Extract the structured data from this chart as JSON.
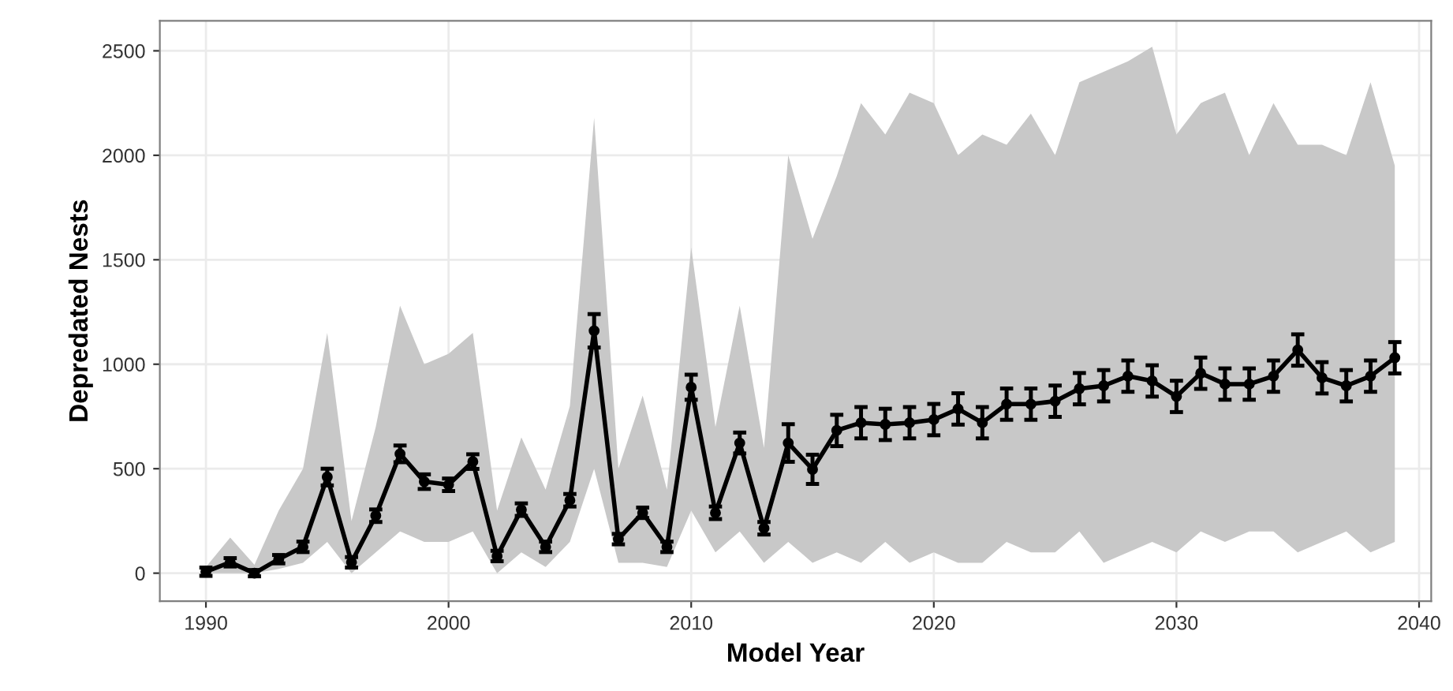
{
  "chart_data": {
    "type": "line",
    "xlabel": "Model Year",
    "ylabel": "Depredated Nests",
    "x": [
      1990,
      1991,
      1992,
      1993,
      1994,
      1995,
      1996,
      1997,
      1998,
      1999,
      2000,
      2001,
      2002,
      2003,
      2004,
      2005,
      2006,
      2007,
      2008,
      2009,
      2010,
      2011,
      2012,
      2013,
      2014,
      2015,
      2016,
      2017,
      2018,
      2019,
      2020,
      2021,
      2022,
      2023,
      2024,
      2025,
      2026,
      2027,
      2028,
      2029,
      2030,
      2031,
      2032,
      2033,
      2034,
      2035,
      2036,
      2037,
      2038,
      2039
    ],
    "series": [
      {
        "color": "#000000",
        "values": [
          7,
          52,
          0,
          67,
          126,
          460,
          52,
          275,
          571,
          438,
          423,
          534,
          82,
          304,
          126,
          349,
          1160,
          163,
          289,
          126,
          890,
          289,
          623,
          215,
          623,
          497,
          683,
          720,
          712,
          720,
          735,
          786,
          720,
          809,
          809,
          823,
          883,
          897,
          943,
          920,
          846,
          957,
          905,
          905,
          943,
          1068,
          935,
          897,
          943,
          1031
        ],
        "errors": [
          20,
          20,
          15,
          20,
          25,
          40,
          25,
          30,
          40,
          35,
          30,
          35,
          25,
          30,
          25,
          30,
          80,
          25,
          25,
          25,
          60,
          30,
          50,
          30,
          90,
          70,
          75,
          75,
          75,
          75,
          75,
          75,
          75,
          75,
          75,
          75,
          75,
          75,
          75,
          75,
          75,
          75,
          75,
          75,
          75,
          75,
          75,
          75,
          75,
          75
        ],
        "lower": [
          0,
          0,
          0,
          20,
          50,
          150,
          0,
          100,
          200,
          150,
          150,
          200,
          0,
          100,
          30,
          150,
          500,
          50,
          50,
          30,
          300,
          100,
          200,
          50,
          150,
          50,
          100,
          50,
          150,
          50,
          100,
          50,
          50,
          150,
          100,
          100,
          200,
          50,
          100,
          150,
          100,
          200,
          150,
          200,
          200,
          100,
          150,
          200,
          100,
          150
        ],
        "upper": [
          30,
          170,
          40,
          300,
          500,
          1150,
          250,
          700,
          1280,
          1000,
          1050,
          1150,
          300,
          650,
          400,
          800,
          2180,
          500,
          850,
          400,
          1560,
          700,
          1280,
          600,
          2000,
          1600,
          1900,
          2250,
          2100,
          2300,
          2250,
          2000,
          2100,
          2050,
          2200,
          2000,
          2350,
          2400,
          2450,
          2520,
          2100,
          2250,
          2300,
          2000,
          2250,
          2050,
          2050,
          2000,
          2350,
          1950
        ]
      }
    ],
    "xlim": [
      1988.1,
      2040.5
    ],
    "ylim": [
      -134,
      2644
    ],
    "xticks": [
      1990,
      2000,
      2010,
      2020,
      2030,
      2040
    ],
    "yticks": [
      0,
      500,
      1000,
      1500,
      2000,
      2500
    ],
    "grid": true,
    "marker": "circle",
    "line_style": "solid"
  }
}
